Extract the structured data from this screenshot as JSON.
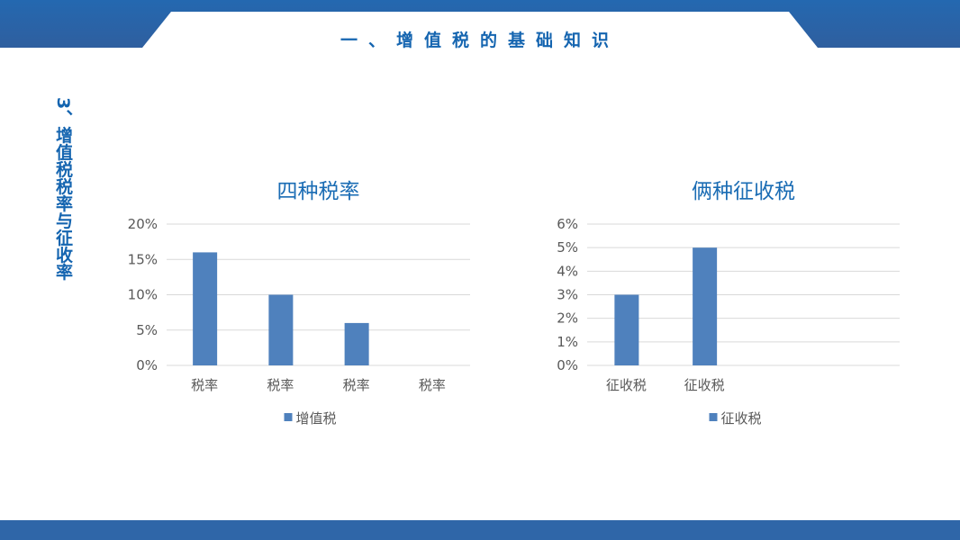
{
  "header": {
    "title": "一、增值税的基础知识"
  },
  "side_title": "3、增值税税率与征收率",
  "colors": {
    "bar": "#4f81bd",
    "header": "#2468b0"
  },
  "chart_data": [
    {
      "type": "bar",
      "title": "四种税率",
      "categories": [
        "税率",
        "税率",
        "税率",
        "税率"
      ],
      "series": [
        {
          "name": "增值税",
          "values": [
            16,
            10,
            6,
            0
          ]
        }
      ],
      "ylim": [
        0,
        20
      ],
      "yticks": [
        "0%",
        "5%",
        "10%",
        "15%",
        "20%"
      ],
      "grid": true,
      "legend": "bottom"
    },
    {
      "type": "bar",
      "title": "俩种征收税",
      "categories": [
        "征收税",
        "征收税",
        "",
        ""
      ],
      "series": [
        {
          "name": "征收税",
          "values": [
            3,
            5,
            null,
            null
          ]
        }
      ],
      "ylim": [
        0,
        6
      ],
      "yticks": [
        "0%",
        "1%",
        "2%",
        "3%",
        "4%",
        "5%",
        "6%"
      ],
      "grid": true,
      "legend": "bottom"
    }
  ]
}
